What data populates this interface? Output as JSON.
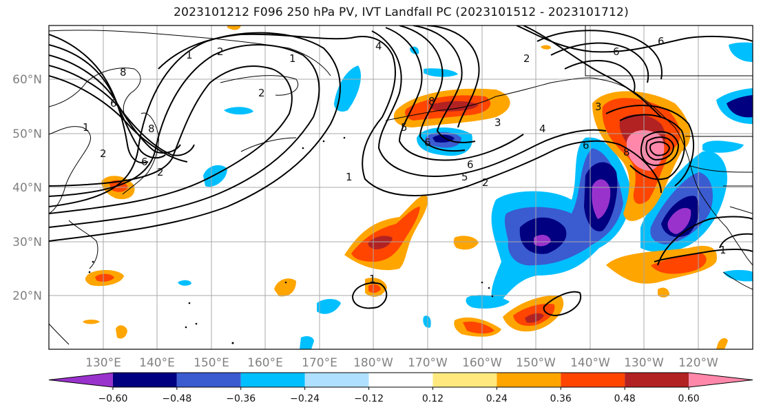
{
  "title": "2023101212 F096 250 hPa PV, IVT Landfall PC (2023101512 - 2023101712)",
  "lat_labels": [
    "60°N",
    "50°N",
    "40°N",
    "30°N",
    "20°N"
  ],
  "lon_labels": [
    "130°E",
    "140°E",
    "150°E",
    "160°E",
    "170°E",
    "180°W",
    "170°W",
    "160°W",
    "150°W",
    "140°W",
    "130°W",
    "120°W"
  ],
  "colorbar": {
    "colors": [
      "#9932cc",
      "#000080",
      "#3b5bd1",
      "#00bfff",
      "#b0e0ff",
      "#ffffff",
      "#ffe97f",
      "#ffa500",
      "#ff4500",
      "#b22222",
      "#ff88aa"
    ],
    "tick_labels": [
      "−0.60",
      "−0.48",
      "−0.36",
      "−0.24",
      "−0.12",
      "0.12",
      "0.24",
      "0.36",
      "0.48",
      "0.60"
    ]
  },
  "pv_labels": [
    "1",
    "2",
    "6",
    "8",
    "1",
    "2",
    "6",
    "8",
    "2",
    "1",
    "2",
    "4",
    "5",
    "6",
    "3",
    "8",
    "1",
    "5",
    "6",
    "2",
    "4",
    "2",
    "6",
    "3",
    "8",
    "6",
    "6",
    "1",
    "1"
  ]
}
